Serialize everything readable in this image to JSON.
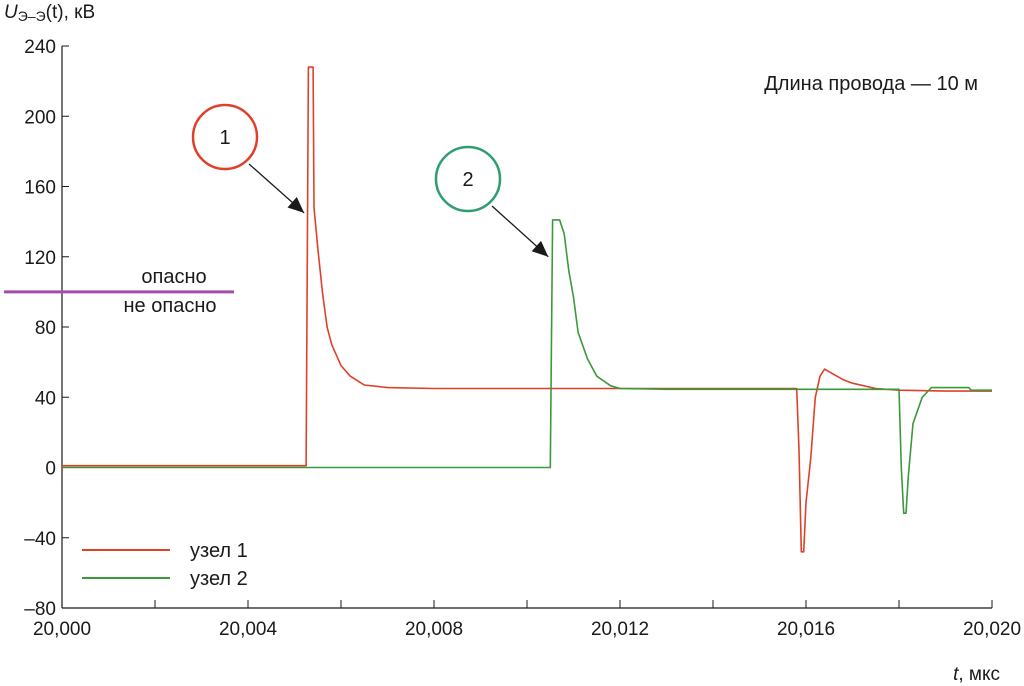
{
  "chart_data": {
    "type": "line",
    "y_axis_label": {
      "var": "U",
      "sub": "Э–Э",
      "arg": "(t)",
      "unit": ", кВ"
    },
    "x_axis_label": {
      "var": "t",
      "unit": ", мкс"
    },
    "xlim": [
      20.0,
      20.02
    ],
    "ylim": [
      -80,
      240
    ],
    "x_ticks": [
      20.0,
      20.004,
      20.008,
      20.012,
      20.016,
      20.02
    ],
    "x_tick_labels": [
      "20,000",
      "20,004",
      "20,008",
      "20,012",
      "20,016",
      "20,020"
    ],
    "y_ticks": [
      -80,
      -40,
      0,
      40,
      80,
      120,
      160,
      200,
      240
    ],
    "y_tick_labels": [
      "–80",
      "–40",
      "0",
      "40",
      "80",
      "120",
      "160",
      "200",
      "240"
    ],
    "grid": false,
    "annotation_text": "Длина провода — 10 м",
    "threshold": {
      "y": 100,
      "label_above": "опасно",
      "label_below": "не опасно",
      "color": "#a64ca6"
    },
    "markers": [
      {
        "label": "1",
        "color": "#e0402a",
        "points_to_x": 20.00525,
        "points_to_y": 145
      },
      {
        "label": "2",
        "color": "#2e9e6e",
        "points_to_x": 20.0105,
        "points_to_y": 120
      }
    ],
    "legend_position": "bottom-left",
    "series": [
      {
        "name": "узел 1",
        "color": "#e0402a",
        "points": [
          [
            20.0,
            1
          ],
          [
            20.00525,
            1
          ],
          [
            20.0053,
            228
          ],
          [
            20.0054,
            228
          ],
          [
            20.00542,
            148
          ],
          [
            20.0055,
            125
          ],
          [
            20.0056,
            100
          ],
          [
            20.0057,
            80
          ],
          [
            20.0058,
            70
          ],
          [
            20.006,
            58
          ],
          [
            20.0062,
            52
          ],
          [
            20.0065,
            47
          ],
          [
            20.007,
            45.5
          ],
          [
            20.008,
            45
          ],
          [
            20.0158,
            45
          ],
          [
            20.01585,
            10
          ],
          [
            20.0159,
            -48
          ],
          [
            20.01595,
            -48
          ],
          [
            20.016,
            -20
          ],
          [
            20.0161,
            5
          ],
          [
            20.0162,
            40
          ],
          [
            20.0163,
            52
          ],
          [
            20.0164,
            56
          ],
          [
            20.0166,
            53
          ],
          [
            20.0168,
            50
          ],
          [
            20.017,
            48
          ],
          [
            20.0175,
            45
          ],
          [
            20.018,
            44
          ],
          [
            20.019,
            43.5
          ],
          [
            20.02,
            43.5
          ]
        ]
      },
      {
        "name": "узел 2",
        "color": "#3a9a3a",
        "points": [
          [
            20.0,
            0
          ],
          [
            20.0105,
            0
          ],
          [
            20.01055,
            141
          ],
          [
            20.0107,
            141
          ],
          [
            20.0108,
            133
          ],
          [
            20.0109,
            112
          ],
          [
            20.011,
            97
          ],
          [
            20.0111,
            77
          ],
          [
            20.0113,
            62
          ],
          [
            20.0115,
            52
          ],
          [
            20.0118,
            46.5
          ],
          [
            20.012,
            45
          ],
          [
            20.013,
            44.5
          ],
          [
            20.018,
            44.5
          ],
          [
            20.01805,
            0
          ],
          [
            20.0181,
            -26
          ],
          [
            20.01815,
            -26
          ],
          [
            20.0182,
            -5
          ],
          [
            20.0183,
            25
          ],
          [
            20.0185,
            40
          ],
          [
            20.0187,
            45.5
          ],
          [
            20.0195,
            45.5
          ],
          [
            20.01955,
            44
          ],
          [
            20.02,
            44
          ]
        ]
      }
    ]
  }
}
